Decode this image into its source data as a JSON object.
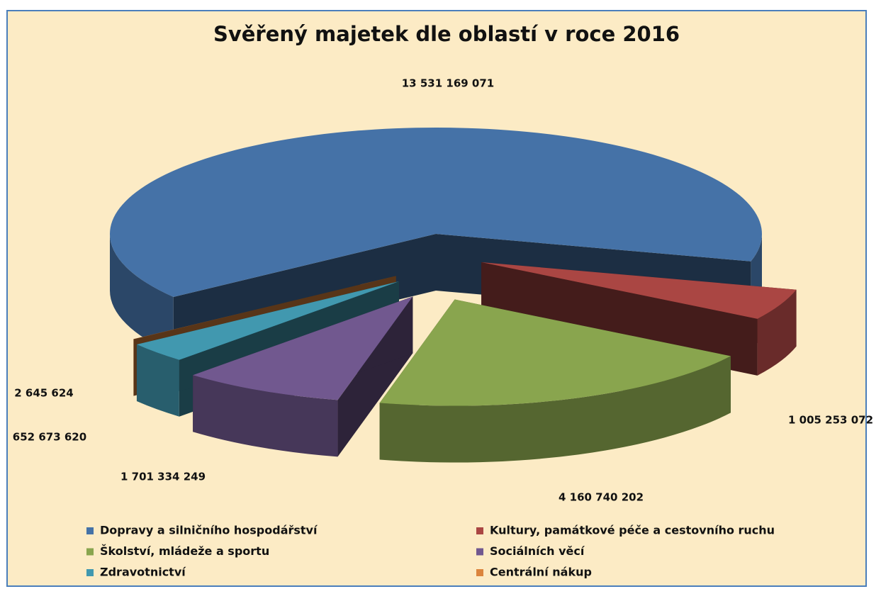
{
  "chart_data": {
    "type": "pie",
    "title": "Svěřený majetek dle oblastí v roce 2016",
    "categories": [
      "Dopravy a silničního hospodářství",
      "Kultury, památkové péče a cestovního ruchu",
      "Školství, mládeže a sportu",
      "Sociálních věcí",
      "Zdravotnictví",
      "Centrální nákup"
    ],
    "values": [
      13531169071,
      1005253072,
      4160740202,
      1701334249,
      652673620,
      2645624
    ],
    "value_labels": [
      "13 531 169 071",
      "1 005 253 072",
      "4 160 740 202",
      "1 701 334 249",
      "652 673 620",
      "2 645 624"
    ],
    "colors": [
      "#4572a7",
      "#aa4643",
      "#89a54e",
      "#71588f",
      "#4198af",
      "#db843d"
    ]
  }
}
